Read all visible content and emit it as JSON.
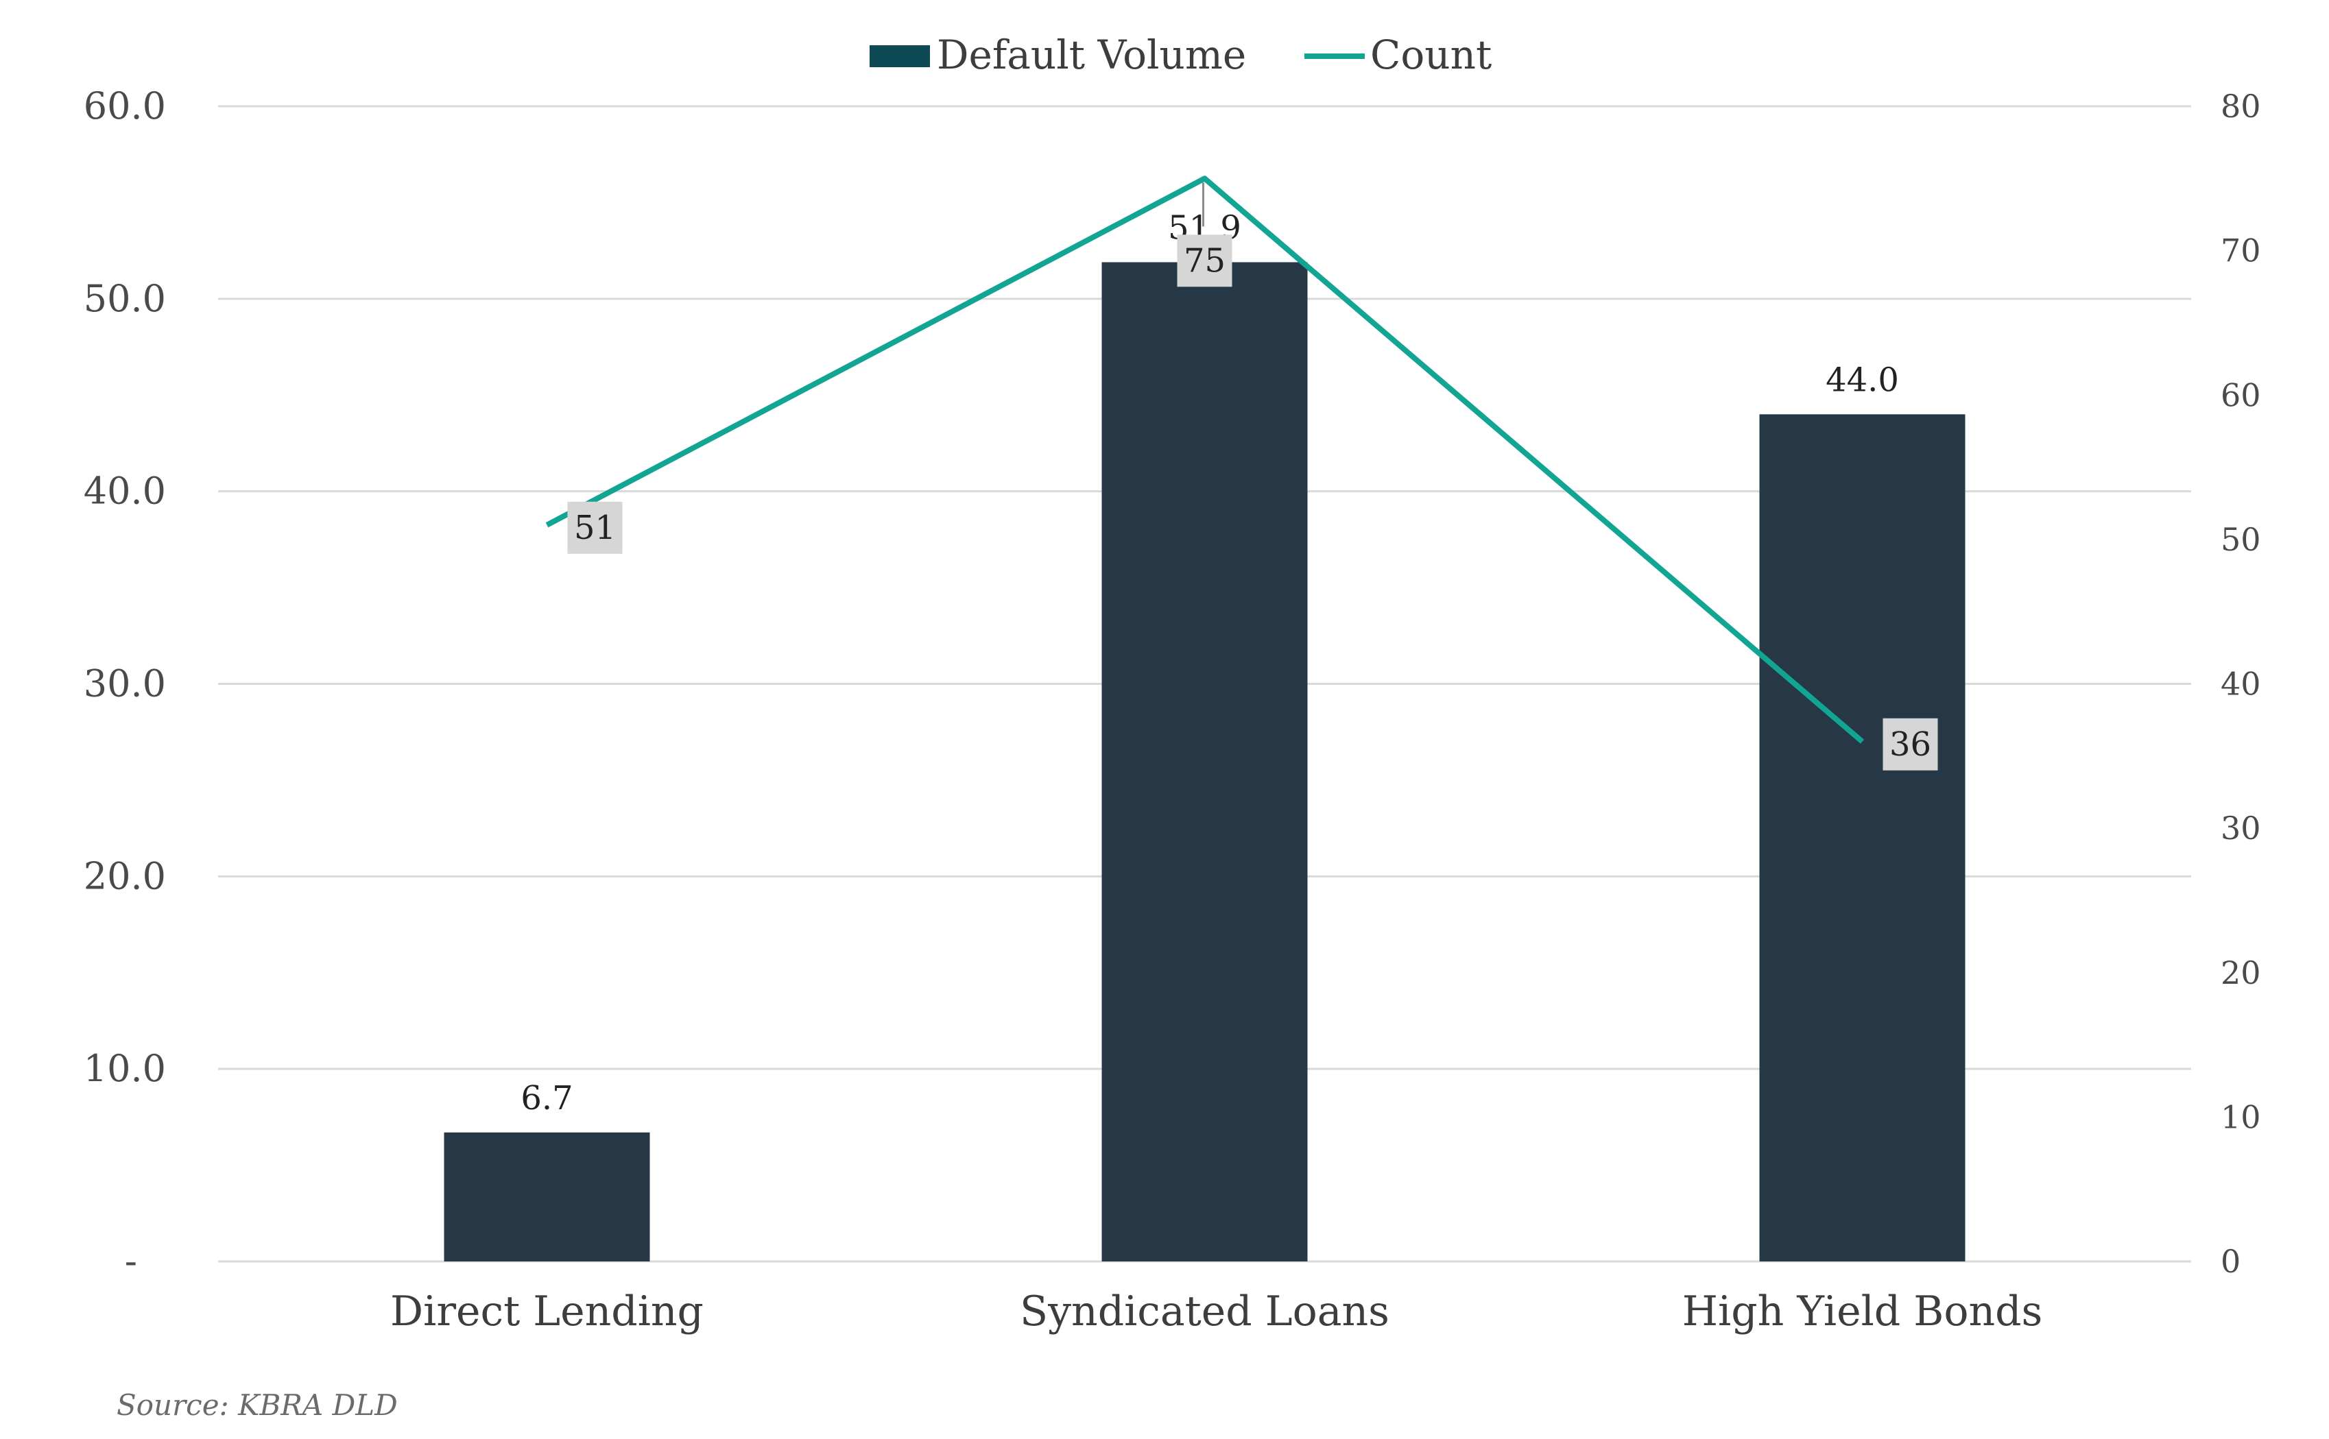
{
  "colors": {
    "bar": "#263746",
    "line": "#12a593",
    "legend_bar": "#0d4a55",
    "grid": "#d9d9d9",
    "label_box": "#d6d6d6"
  },
  "source": "Source: KBRA DLD",
  "chart_data": {
    "type": "bar",
    "categories": [
      "Direct Lending",
      "Syndicated Loans",
      "High Yield Bonds"
    ],
    "series": [
      {
        "name": "Default Volume",
        "type": "bar",
        "axis": "left",
        "values": [
          6.7,
          51.9,
          44.0
        ],
        "labels": [
          "6.7",
          "51.9",
          "44.0"
        ]
      },
      {
        "name": "Count",
        "type": "line",
        "axis": "right",
        "values": [
          51,
          75,
          36
        ],
        "labels": [
          "51",
          "75",
          "36"
        ]
      }
    ],
    "y_left": {
      "range": [
        0,
        60
      ],
      "ticks": [
        0,
        10,
        20,
        30,
        40,
        50,
        60
      ],
      "tick_labels": [
        "-",
        "10.0",
        "20.0",
        "30.0",
        "40.0",
        "50.0",
        "60.0"
      ]
    },
    "y_right": {
      "range": [
        0,
        80
      ],
      "ticks": [
        0,
        10,
        20,
        30,
        40,
        50,
        60,
        70,
        80
      ],
      "tick_labels": [
        "0",
        "10",
        "20",
        "30",
        "40",
        "50",
        "60",
        "70",
        "80"
      ]
    },
    "grid": true,
    "legend_position": "top-center",
    "title": "",
    "xlabel": "",
    "ylabel": ""
  }
}
